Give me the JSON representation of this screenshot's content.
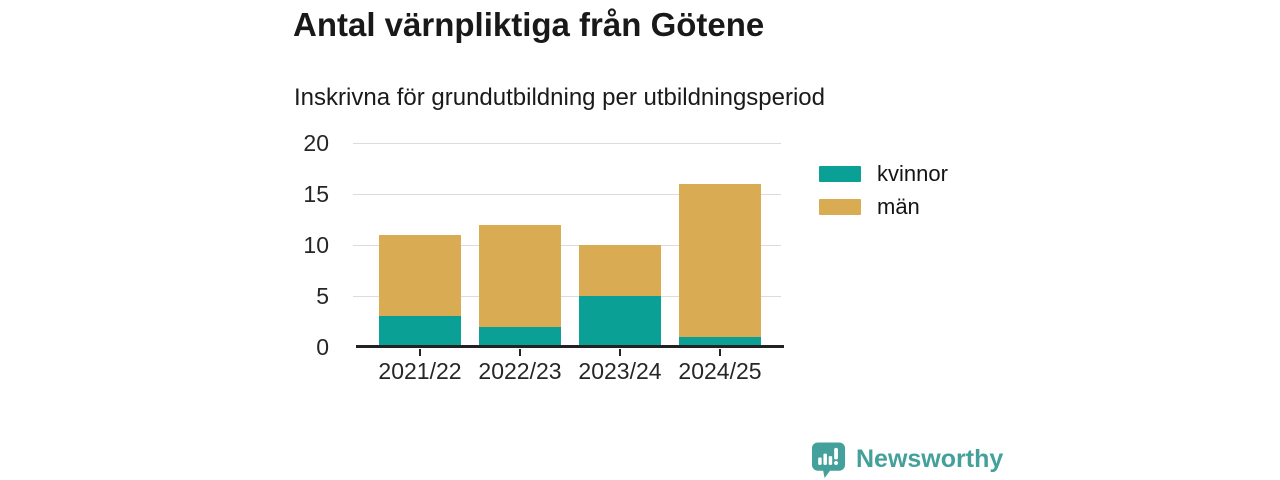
{
  "title": "Antal värnpliktiga från Götene",
  "subtitle": "Inskrivna för grundutbildning per utbildningsperiod",
  "chart_data": {
    "type": "bar",
    "stacked": true,
    "title": "Antal värnpliktiga från Götene",
    "subtitle": "Inskrivna för grundutbildning per utbildningsperiod",
    "categories": [
      "2021/22",
      "2022/23",
      "2023/24",
      "2024/25"
    ],
    "series": [
      {
        "name": "kvinnor",
        "color": "#0aa096",
        "values": [
          3,
          2,
          5,
          1
        ]
      },
      {
        "name": "män",
        "color": "#d9ab53",
        "values": [
          8,
          10,
          5,
          15
        ]
      }
    ],
    "totals": [
      11,
      12,
      10,
      16
    ],
    "xlabel": "",
    "ylabel": "",
    "ylim": [
      0,
      20
    ],
    "yticks": [
      0,
      5,
      10,
      15,
      20
    ],
    "grid": true,
    "legend_position": "right"
  },
  "branding": {
    "name": "Newsworthy",
    "logo_icon": "newsworthy-speech-bubble-bar-chart-icon",
    "color": "#43a09b"
  },
  "colors": {
    "background": "#ffffff",
    "title_text": "#191919",
    "tick_text": "#262626",
    "axis": "#222222",
    "gridline": "#dcdcdc",
    "kvinnor": "#0aa096",
    "man": "#d9ab53",
    "brand": "#43a09b"
  }
}
